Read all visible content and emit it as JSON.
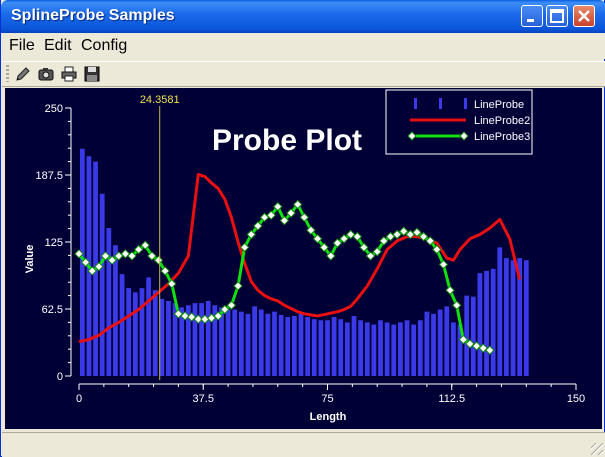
{
  "window": {
    "title": "SplineProbe Samples"
  },
  "menu": {
    "items": [
      {
        "label": "File"
      },
      {
        "label": "Edit"
      },
      {
        "label": "Config"
      }
    ]
  },
  "toolbar": {
    "icons": [
      "pencil-icon",
      "camera-icon",
      "printer-icon",
      "save-icon"
    ]
  },
  "colors": {
    "plot_bg": "#000036",
    "bars": "#3A3AE8",
    "line_red": "#E81010",
    "line_green": "#10E010",
    "probe_line": "#C8B84A",
    "probe_label": "#F0E050"
  },
  "chart_data": {
    "type": "bar",
    "title": "Probe Plot",
    "xlabel": "Length",
    "ylabel": "Value",
    "xlim": [
      0,
      150
    ],
    "ylim": [
      0,
      250
    ],
    "xticks": [
      "0",
      "37.5",
      "75",
      "112.5",
      "150"
    ],
    "yticks": [
      "0",
      "62.5",
      "125",
      "187.5",
      "250"
    ],
    "probe": {
      "x": 24.3581,
      "label": "24.3581"
    },
    "legend": {
      "position": "top-right",
      "entries": [
        "LineProbe",
        "LineProbe2",
        "LineProbe3"
      ]
    },
    "series": [
      {
        "name": "LineProbe",
        "kind": "bar",
        "x": [
          0,
          2,
          4,
          6,
          8,
          10,
          12,
          14,
          16,
          18,
          20,
          22,
          24,
          26,
          28,
          30,
          32,
          34,
          36,
          38,
          40,
          42,
          44,
          46,
          48,
          50,
          52,
          54,
          56,
          58,
          60,
          62,
          64,
          66,
          68,
          70,
          72,
          74,
          76,
          78,
          80,
          82,
          84,
          86,
          88,
          90,
          92,
          94,
          96,
          98,
          100,
          102,
          104,
          106,
          108,
          110,
          112,
          114,
          116,
          118,
          120,
          122,
          124,
          126,
          128,
          130,
          132,
          134,
          136,
          138,
          140
        ],
        "values": [
          212,
          205,
          200,
          170,
          138,
          122,
          95,
          82,
          78,
          82,
          92,
          80,
          72,
          70,
          68,
          64,
          66,
          68,
          68,
          70,
          66,
          64,
          62,
          62,
          60,
          58,
          65,
          62,
          58,
          60,
          57,
          55,
          56,
          58,
          55,
          53,
          52,
          52,
          55,
          53,
          50,
          56,
          52,
          50,
          48,
          52,
          50,
          48,
          50,
          52,
          48,
          52,
          60,
          58,
          62,
          65,
          50,
          48,
          75,
          74,
          96,
          98,
          100,
          120,
          110,
          108,
          110,
          108,
          0,
          0,
          0
        ]
      },
      {
        "name": "LineProbe2",
        "kind": "line",
        "x": [
          0,
          3,
          6,
          9,
          12,
          15,
          18,
          21,
          24,
          27,
          30,
          33,
          36,
          38,
          40,
          42,
          44,
          46,
          48,
          50,
          52,
          54,
          56,
          58,
          60,
          62,
          64,
          66,
          68,
          70,
          72,
          75,
          78,
          80,
          82,
          84,
          87,
          90,
          93,
          96,
          99,
          102,
          105,
          108,
          111,
          113,
          115,
          118,
          121,
          124,
          127,
          130,
          133
        ],
        "values": [
          32,
          34,
          38,
          45,
          50,
          56,
          62,
          70,
          78,
          86,
          96,
          112,
          188,
          186,
          180,
          175,
          165,
          148,
          125,
          105,
          88,
          80,
          75,
          72,
          70,
          66,
          63,
          60,
          58,
          57,
          56,
          58,
          60,
          62,
          65,
          72,
          84,
          100,
          118,
          126,
          130,
          130,
          128,
          124,
          110,
          108,
          118,
          128,
          132,
          138,
          146,
          128,
          90
        ]
      },
      {
        "name": "LineProbe3",
        "kind": "line",
        "x": [
          0,
          2,
          4,
          6,
          8,
          10,
          12,
          14,
          16,
          18,
          20,
          22,
          24,
          26,
          28,
          30,
          32,
          34,
          36,
          38,
          40,
          42,
          44,
          46,
          48,
          50,
          52,
          54,
          56,
          58,
          60,
          62,
          64,
          66,
          68,
          70,
          72,
          74,
          76,
          78,
          80,
          82,
          84,
          86,
          88,
          90,
          92,
          94,
          96,
          98,
          100,
          102,
          104,
          106,
          108,
          110,
          112,
          114,
          116,
          118,
          120,
          122,
          124
        ],
        "values": [
          114,
          106,
          98,
          102,
          112,
          108,
          112,
          114,
          112,
          118,
          122,
          112,
          108,
          98,
          86,
          58,
          56,
          55,
          53,
          53,
          54,
          56,
          62,
          66,
          84,
          120,
          132,
          140,
          148,
          150,
          158,
          145,
          152,
          160,
          148,
          136,
          128,
          120,
          112,
          124,
          128,
          132,
          130,
          120,
          112,
          116,
          126,
          130,
          132,
          135,
          132,
          134,
          130,
          126,
          118,
          104,
          80,
          66,
          34,
          30,
          28,
          26,
          24
        ]
      }
    ]
  }
}
